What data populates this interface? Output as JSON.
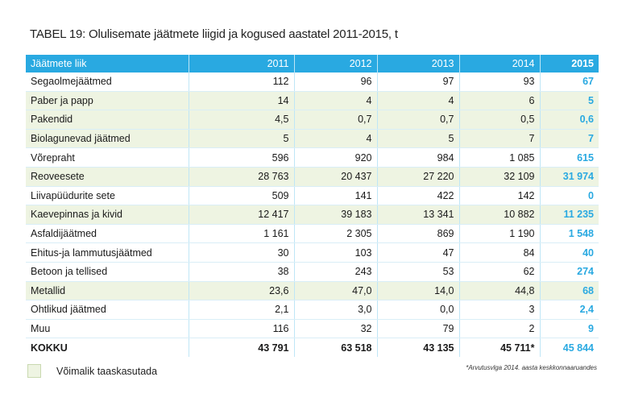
{
  "title": "TABEL 19: Olulisemate jäätmete liigid ja kogused aastatel 2011-2015, t",
  "table": {
    "headers": [
      "Jäätmete liik",
      "2011",
      "2012",
      "2013",
      "2014",
      "2015"
    ],
    "rows": [
      {
        "cells": [
          "Segaolmejäätmed",
          "112",
          "96",
          "97",
          "93",
          "67"
        ],
        "reusable": false
      },
      {
        "cells": [
          "Paber ja papp",
          "14",
          "4",
          "4",
          "6",
          "5"
        ],
        "reusable": true
      },
      {
        "cells": [
          "Pakendid",
          "4,5",
          "0,7",
          "0,7",
          "0,5",
          "0,6"
        ],
        "reusable": true
      },
      {
        "cells": [
          "Biolagunevad jäätmed",
          "5",
          "4",
          "5",
          "7",
          "7"
        ],
        "reusable": true
      },
      {
        "cells": [
          "Võrepraht",
          "596",
          "920",
          "984",
          "1 085",
          "615"
        ],
        "reusable": false
      },
      {
        "cells": [
          "Reoveesete",
          "28 763",
          "20 437",
          "27 220",
          "32 109",
          "31 974"
        ],
        "reusable": true
      },
      {
        "cells": [
          "Liivapüüdurite sete",
          "509",
          "141",
          "422",
          "142",
          "0"
        ],
        "reusable": false
      },
      {
        "cells": [
          "Kaevepinnas ja kivid",
          "12 417",
          "39 183",
          "13 341",
          "10 882",
          "11 235"
        ],
        "reusable": true
      },
      {
        "cells": [
          "Asfaldijäätmed",
          "1 161",
          "2 305",
          "869",
          "1 190",
          "1 548"
        ],
        "reusable": false
      },
      {
        "cells": [
          "Ehitus-ja lammutusjäätmed",
          "30",
          "103",
          "47",
          "84",
          "40"
        ],
        "reusable": false
      },
      {
        "cells": [
          "Betoon ja tellised",
          "38",
          "243",
          "53",
          "62",
          "274"
        ],
        "reusable": false
      },
      {
        "cells": [
          "Metallid",
          "23,6",
          "47,0",
          "14,0",
          "44,8",
          "68"
        ],
        "reusable": true
      },
      {
        "cells": [
          "Ohtlikud jäätmed",
          "2,1",
          "3,0",
          "0,0",
          "3",
          "2,4"
        ],
        "reusable": false
      },
      {
        "cells": [
          "Muu",
          "116",
          "32",
          "79",
          "2",
          "9"
        ],
        "reusable": false
      }
    ],
    "total": [
      "KOKKU",
      "43 791",
      "63 518",
      "43 135",
      "45 711*",
      "45 844"
    ]
  },
  "legend": {
    "label": "Võimalik taaskasutada",
    "color": "#eef4e2"
  },
  "footnote": "*Arvutusvlga 2014. aasta keskkonnaaruandes",
  "colors": {
    "header": "#29a9e1",
    "reusable_row": "#eef4e2",
    "accent_text": "#29a9e1"
  }
}
